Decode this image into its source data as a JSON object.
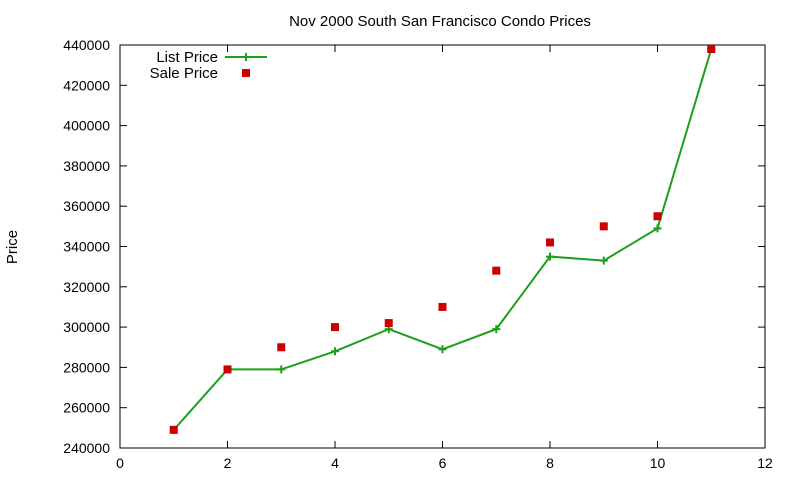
{
  "chart_data": {
    "type": "line",
    "title": "Nov 2000 South San Francisco Condo Prices",
    "xlabel": "",
    "ylabel": "Price",
    "xlim": [
      0,
      12
    ],
    "ylim": [
      240000,
      440000
    ],
    "x_ticks": [
      0,
      2,
      4,
      6,
      8,
      10,
      12
    ],
    "y_ticks": [
      240000,
      260000,
      280000,
      300000,
      320000,
      340000,
      360000,
      380000,
      400000,
      420000,
      440000
    ],
    "grid": false,
    "legend_position": "top-left",
    "series": [
      {
        "name": "List Price",
        "style": "line+cross",
        "color": "#1aa01a",
        "x": [
          1,
          2,
          3,
          4,
          5,
          6,
          7,
          8,
          9,
          10,
          11
        ],
        "y": [
          249000,
          279000,
          279000,
          288000,
          299000,
          289000,
          299000,
          335000,
          333000,
          349000,
          438000
        ]
      },
      {
        "name": "Sale Price",
        "style": "square",
        "color": "#cc0000",
        "x": [
          1,
          2,
          3,
          4,
          5,
          6,
          7,
          8,
          9,
          10,
          11
        ],
        "y": [
          249000,
          279000,
          290000,
          300000,
          302000,
          310000,
          328000,
          342000,
          350000,
          355000,
          438000
        ]
      }
    ]
  }
}
